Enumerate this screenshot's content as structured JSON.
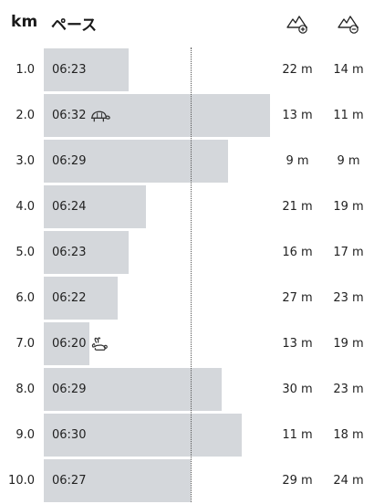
{
  "header": {
    "km_label": "km",
    "pace_label": "ペース",
    "elevation_gain_icon": "mountain-up-icon",
    "elevation_loss_icon": "mountain-down-icon"
  },
  "splits": [
    {
      "km": "1.0",
      "pace": "06:23",
      "gain": "22 m",
      "loss": "14 m",
      "bar_fraction": 0.3,
      "badge": ""
    },
    {
      "km": "2.0",
      "pace": "06:32",
      "gain": "13 m",
      "loss": "11 m",
      "bar_fraction": 0.8,
      "badge": "slowest-turtle-icon"
    },
    {
      "km": "3.0",
      "pace": "06:29",
      "gain": "9 m",
      "loss": "9 m",
      "bar_fraction": 0.65,
      "badge": ""
    },
    {
      "km": "4.0",
      "pace": "06:24",
      "gain": "21 m",
      "loss": "19 m",
      "bar_fraction": 0.36,
      "badge": ""
    },
    {
      "km": "5.0",
      "pace": "06:23",
      "gain": "16 m",
      "loss": "17 m",
      "bar_fraction": 0.3,
      "badge": ""
    },
    {
      "km": "6.0",
      "pace": "06:22",
      "gain": "27 m",
      "loss": "23 m",
      "bar_fraction": 0.26,
      "badge": ""
    },
    {
      "km": "7.0",
      "pace": "06:20",
      "gain": "13 m",
      "loss": "19 m",
      "bar_fraction": 0.16,
      "badge": "fastest-rabbit-icon"
    },
    {
      "km": "8.0",
      "pace": "06:29",
      "gain": "30 m",
      "loss": "23 m",
      "bar_fraction": 0.63,
      "badge": ""
    },
    {
      "km": "9.0",
      "pace": "06:30",
      "gain": "11 m",
      "loss": "18 m",
      "bar_fraction": 0.7,
      "badge": ""
    },
    {
      "km": "10.0",
      "pace": "06:27",
      "gain": "29 m",
      "loss": "24 m",
      "bar_fraction": 0.52,
      "badge": ""
    }
  ],
  "average_pace_fraction": 0.52
}
